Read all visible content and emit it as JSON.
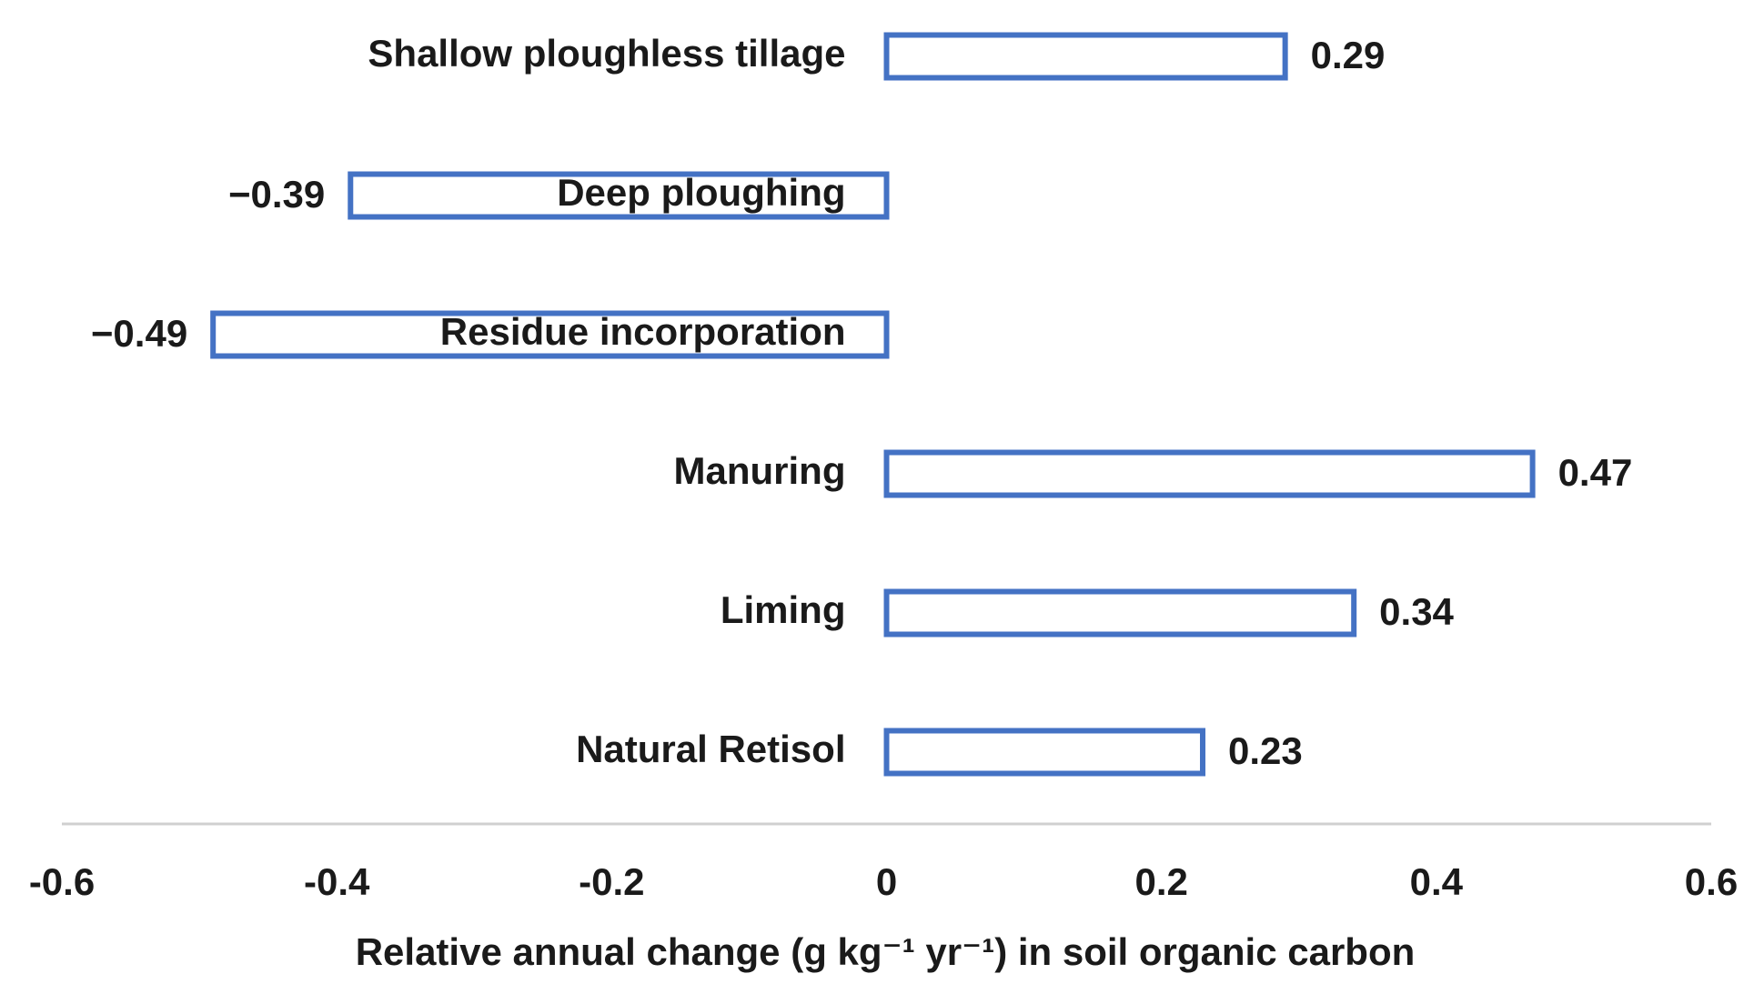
{
  "chart_data": {
    "type": "bar",
    "orientation": "horizontal",
    "categories": [
      "Shallow ploughless tillage",
      "Deep ploughing",
      "Residue incorporation",
      "Manuring",
      "Liming",
      "Natural Retisol"
    ],
    "values": [
      0.29,
      -0.39,
      -0.49,
      0.47,
      0.34,
      0.23
    ],
    "value_labels": [
      "0.29",
      "−0.39",
      "−0.49",
      "0.47",
      "0.34",
      "0.23"
    ],
    "color": "#4472c4",
    "xlim": [
      -0.6,
      0.6
    ],
    "xticks": [
      -0.6,
      -0.4,
      -0.2,
      0,
      0.2,
      0.4,
      0.6
    ],
    "xlabel": "Relative annual change (g kg⁻¹ yr⁻¹) in soil organic carbon",
    "grid": false
  }
}
